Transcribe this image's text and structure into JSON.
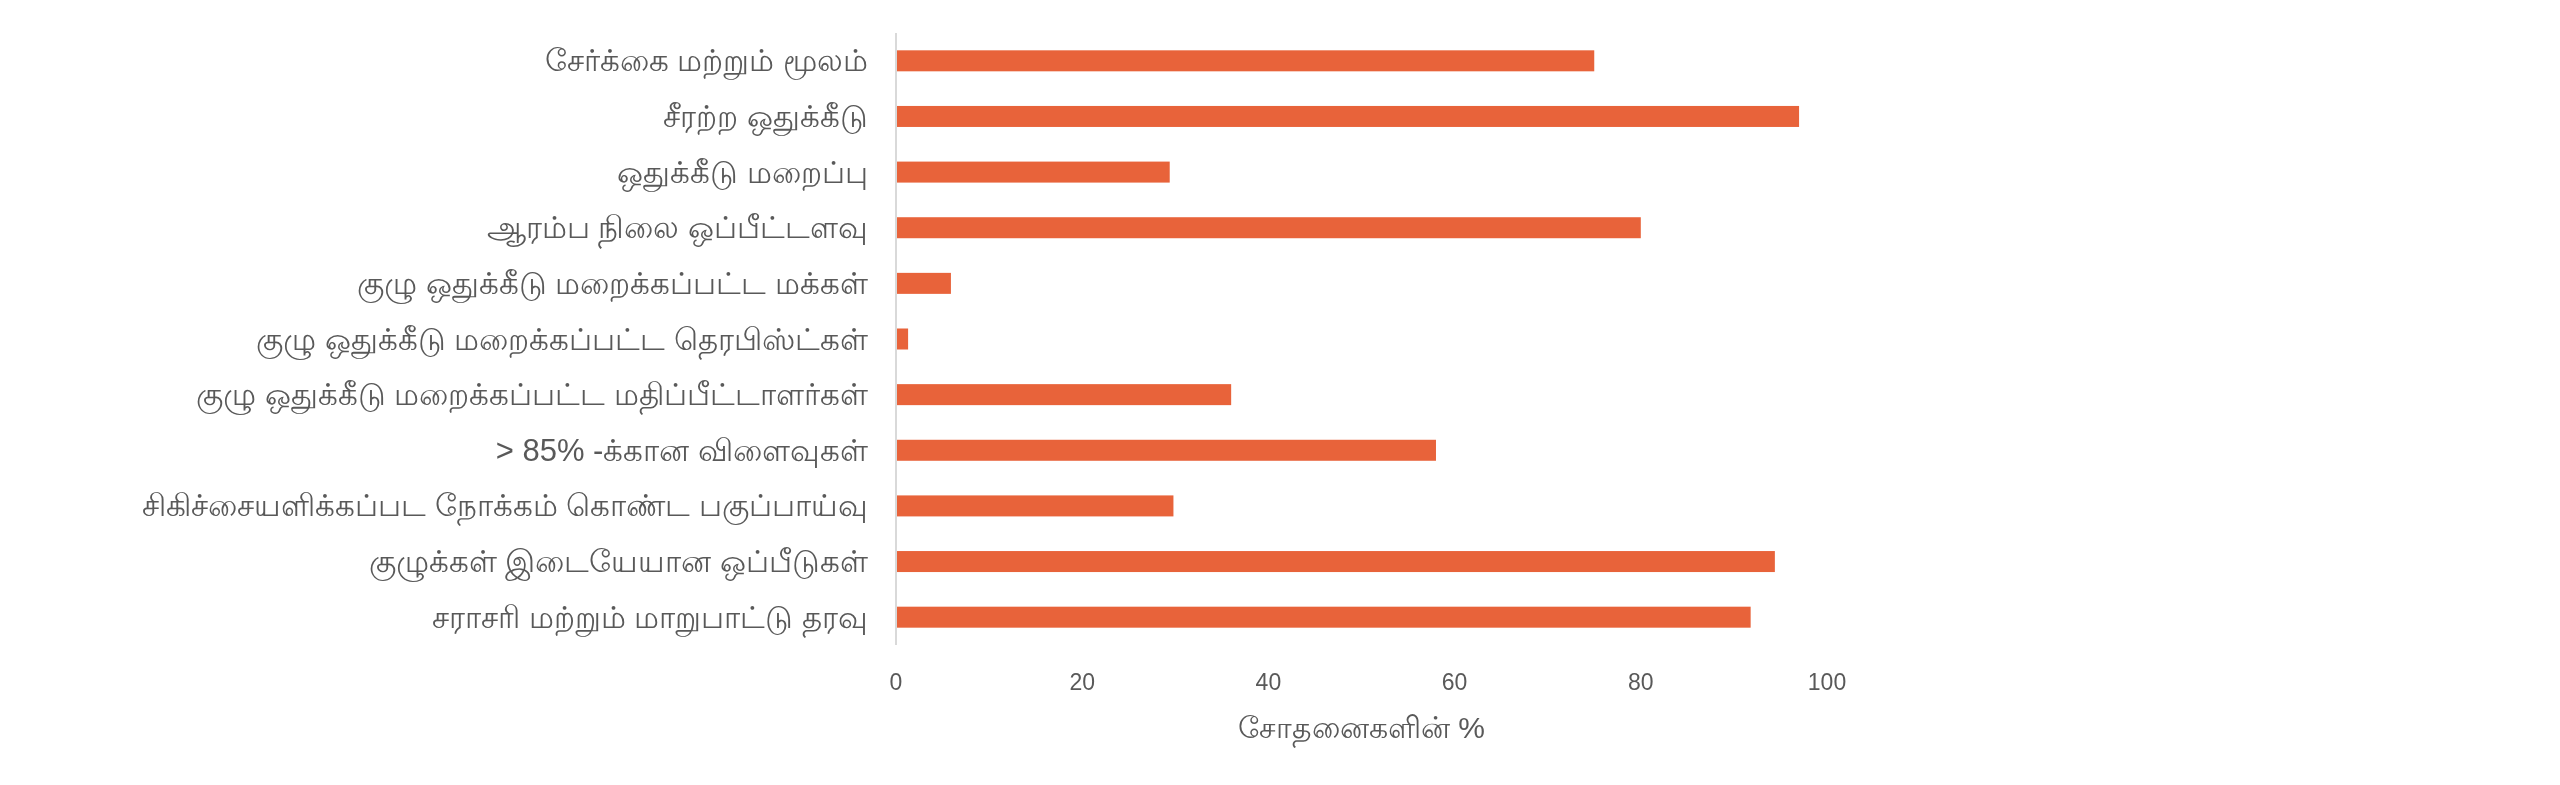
{
  "chart_data": {
    "type": "bar",
    "orientation": "horizontal",
    "xlabel": "சோதனைகளின் %",
    "categories": [
      "சேர்க்கை மற்றும் மூலம்",
      "சீரற்ற ஒதுக்கீடு",
      "ஒதுக்கீடு மறைப்பு",
      "ஆரம்ப நிலை ஒப்பீட்டளவு",
      "குழு ஒதுக்கீடு மறைக்கப்பட்ட மக்கள்",
      "குழு ஒதுக்கீடு மறைக்கப்பட்ட தெரபிஸ்ட்கள்",
      "குழு ஒதுக்கீடு மறைக்கப்பட்ட மதிப்பீட்டாளர்கள்",
      "> 85% -க்கான விளைவுகள்",
      "சிகிச்சையளிக்கப்பட நோக்கம் கொண்ட பகுப்பாய்வு",
      "குழுக்கள் இடையேயான ஒப்பீடுகள்",
      "சராசரி மற்றும் மாறுபாட்டு தரவு"
    ],
    "values": [
      75,
      97,
      29.4,
      80,
      5.9,
      1.3,
      36,
      58,
      29.8,
      94.4,
      91.8
    ],
    "color": "#e8633a",
    "xlim": [
      0,
      100
    ],
    "xticks": [
      0,
      20,
      40,
      60,
      80,
      100
    ],
    "grid": false
  }
}
